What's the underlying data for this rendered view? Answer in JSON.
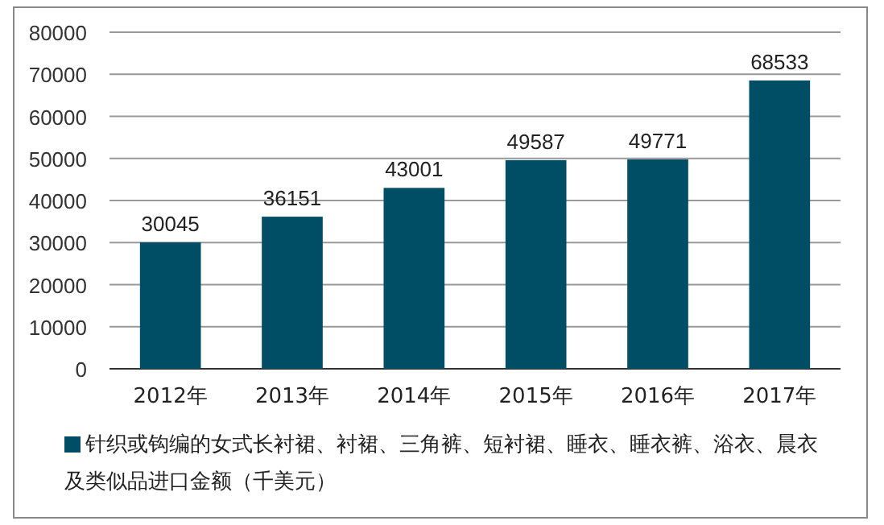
{
  "chart_data": {
    "type": "bar",
    "categories": [
      "2012年",
      "2013年",
      "2014年",
      "2015年",
      "2016年",
      "2017年"
    ],
    "series": [
      {
        "name": "针织或钩编的女式长衬裙、衬裙、三角裤、短衬裙、睡衣、睡衣裤、浴衣、晨衣及类似品进口金额（千美元）",
        "color": "#004d66",
        "values": [
          30045,
          36151,
          43001,
          49587,
          49771,
          68533
        ]
      }
    ],
    "ylim": [
      0,
      80000
    ],
    "yticks": [
      0,
      10000,
      20000,
      30000,
      40000,
      50000,
      60000,
      70000,
      80000
    ],
    "grid": "y",
    "legend": "bottom",
    "data_labels": true
  }
}
